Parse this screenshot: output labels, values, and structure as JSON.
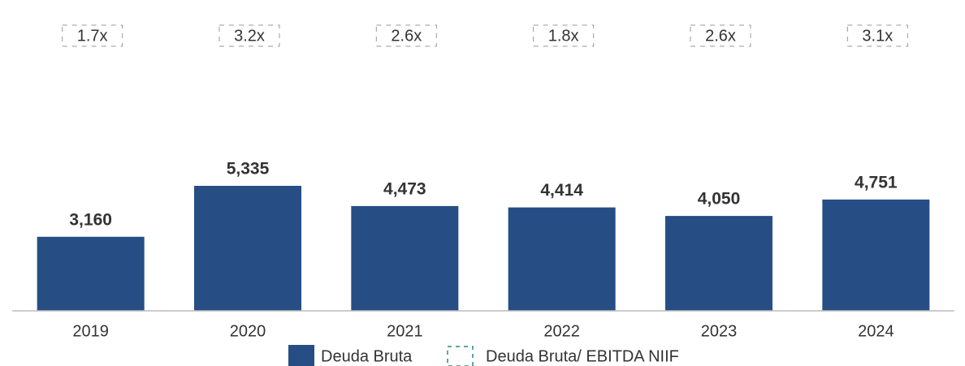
{
  "chart_data": {
    "type": "bar",
    "categories": [
      "2019",
      "2020",
      "2021",
      "2022",
      "2023",
      "2024"
    ],
    "series": [
      {
        "name": "Deuda Bruta",
        "color": "#264e84",
        "values": [
          3160,
          5335,
          4473,
          4414,
          4050,
          4751
        ],
        "value_labels": [
          "3,160",
          "5,335",
          "4,473",
          "4,414",
          "4,050",
          "4,751"
        ]
      },
      {
        "name": "Deuda Bruta/ EBITDA NIIF",
        "color": "#2a8a7a",
        "values": [
          1.7,
          3.2,
          2.6,
          1.8,
          2.6,
          3.1
        ],
        "value_labels": [
          "1.7x",
          "3.2x",
          "2.6x",
          "1.8x",
          "2.6x",
          "3.1x"
        ]
      }
    ]
  }
}
